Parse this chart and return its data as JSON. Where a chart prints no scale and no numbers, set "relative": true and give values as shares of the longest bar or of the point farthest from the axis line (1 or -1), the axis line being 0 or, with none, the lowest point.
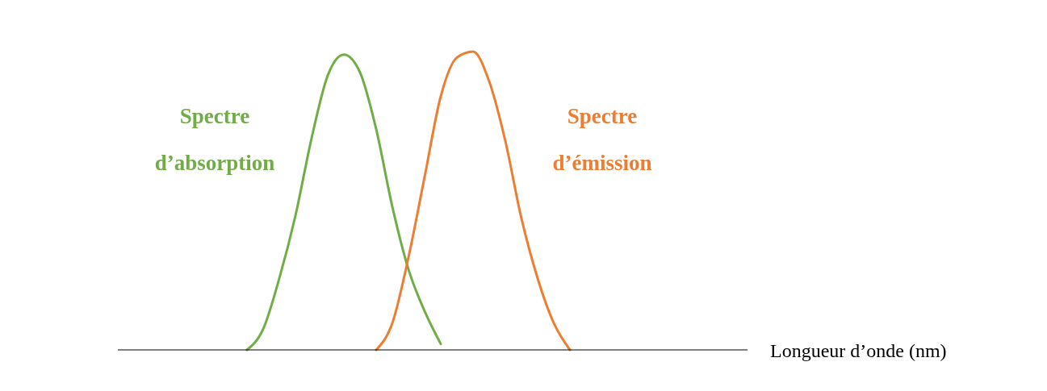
{
  "chart_data": {
    "type": "line",
    "relative": true,
    "xlabel": "Longueur d’onde (nm)",
    "grid": false,
    "marker": "none",
    "line_style": "solid",
    "categories": [
      null,
      null,
      null,
      null,
      null,
      null,
      null,
      null,
      null,
      null,
      null,
      null,
      null,
      null,
      null,
      null,
      null,
      null,
      null,
      null,
      null,
      null,
      null,
      null,
      null,
      null,
      null,
      null,
      null,
      null,
      null,
      null,
      null,
      null,
      null,
      null,
      null,
      null,
      null,
      null
    ],
    "series": [
      {
        "name": "Spectre d’absorption",
        "color": "#70ad47",
        "values": [
          null,
          null,
          null,
          null,
          null,
          null,
          null,
          null,
          0,
          0.07,
          0.24,
          0.45,
          0.71,
          0.92,
          0.99,
          0.93,
          0.74,
          0.48,
          0.27,
          0.13,
          0.02,
          null,
          null,
          null,
          null,
          null,
          null,
          null,
          null,
          null,
          null,
          null,
          null,
          null,
          null,
          null,
          null,
          null,
          null,
          null
        ]
      },
      {
        "name": "Spectre d’émission",
        "color": "#ed7d31",
        "values": [
          null,
          null,
          null,
          null,
          null,
          null,
          null,
          null,
          null,
          null,
          null,
          null,
          null,
          null,
          null,
          null,
          0,
          0.09,
          0.31,
          0.58,
          0.85,
          0.98,
          1,
          0.9,
          0.7,
          0.44,
          0.24,
          0.09,
          0,
          null,
          null,
          null,
          null,
          null,
          null,
          null,
          null,
          null,
          null,
          null
        ]
      }
    ]
  }
}
